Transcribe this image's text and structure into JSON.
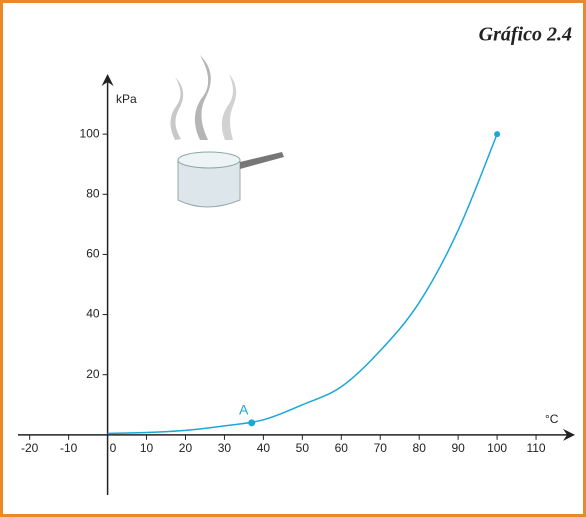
{
  "chart_data": {
    "type": "line",
    "title": "Gráfico 2.4",
    "y_label": "kPa",
    "x_label": "°C",
    "x": [
      0,
      10,
      20,
      30,
      40,
      50,
      60,
      70,
      80,
      90,
      100
    ],
    "series": [
      {
        "color": "#1ba7d8",
        "values": [
          0.5,
          0.8,
          1.5,
          3,
          5,
          10,
          16,
          28,
          44,
          68,
          100
        ]
      }
    ],
    "points": [
      {
        "label": "A",
        "x": 37,
        "y": 4
      }
    ],
    "xlim": [
      -23,
      120
    ],
    "ylim": [
      -20,
      120
    ],
    "xticks": [
      -20,
      -10,
      0,
      10,
      20,
      30,
      40,
      50,
      60,
      70,
      80,
      90,
      100,
      110
    ],
    "yticks": [
      20,
      40,
      60,
      80,
      100
    ]
  }
}
